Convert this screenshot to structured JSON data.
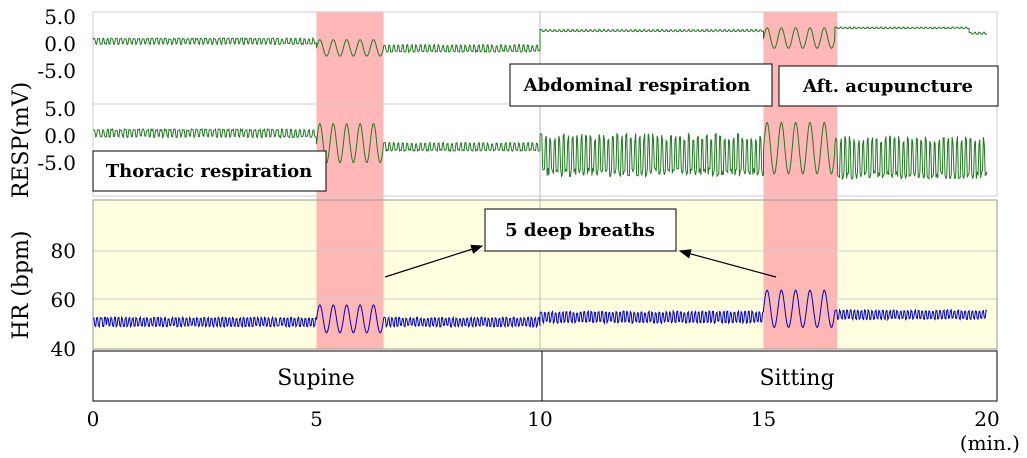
{
  "chart_data": [
    {
      "type": "line",
      "panel": "abdominal",
      "ylabel": "RESP(mV)",
      "yticks": [
        "5.0",
        "0.0",
        "-5.0"
      ],
      "ytick_values": [
        5,
        0,
        -5
      ],
      "ylim": [
        -7,
        5
      ],
      "xlim": [
        0,
        20
      ],
      "series": [
        {
          "name": "Abdominal respiration",
          "color": "#1f7a1f",
          "segments": [
            {
              "start": 0,
              "end": 5.0,
              "base": 0.5,
              "amp": 0.6,
              "period": 0.1
            },
            {
              "start": 5.0,
              "end": 6.5,
              "base": -0.8,
              "amp": 1.6,
              "period": 0.3,
              "deep": true
            },
            {
              "start": 6.5,
              "end": 10.0,
              "base": -0.8,
              "amp": 0.7,
              "period": 0.1
            },
            {
              "start": 10.0,
              "end": 15.0,
              "base": 2.5,
              "amp": 0.2,
              "period": 0.1
            },
            {
              "start": 15.0,
              "end": 16.6,
              "base": 1.0,
              "amp": 2.0,
              "period": 0.32,
              "deep": true
            },
            {
              "start": 16.6,
              "end": 19.6,
              "base": 3.0,
              "amp": 0.15,
              "period": 0.1
            },
            {
              "start": 19.6,
              "end": 20.0,
              "base": 2.0,
              "amp": 0.2,
              "period": 0.1
            }
          ]
        }
      ]
    },
    {
      "type": "line",
      "panel": "thoracic",
      "ylabel": "RESP(mV)",
      "yticks": [
        "5.0",
        "0.0",
        "-5.0"
      ],
      "ytick_values": [
        5,
        0,
        -5
      ],
      "ylim": [
        -9,
        5
      ],
      "xlim": [
        0,
        20
      ],
      "series": [
        {
          "name": "Thoracic respiration",
          "color": "#1f7a1f",
          "segments": [
            {
              "start": 0,
              "end": 5.0,
              "base": 0.5,
              "amp": 0.8,
              "period": 0.1
            },
            {
              "start": 5.0,
              "end": 6.5,
              "base": -1.5,
              "amp": 3.8,
              "period": 0.3,
              "deep": true
            },
            {
              "start": 6.5,
              "end": 10.0,
              "base": -2.0,
              "amp": 0.8,
              "period": 0.1
            },
            {
              "start": 10.0,
              "end": 15.0,
              "base": -3.5,
              "amp": 4.0,
              "period": 0.1
            },
            {
              "start": 15.0,
              "end": 16.6,
              "base": -2.5,
              "amp": 5.0,
              "period": 0.32,
              "deep": true
            },
            {
              "start": 16.6,
              "end": 20.0,
              "base": -4.0,
              "amp": 4.0,
              "period": 0.1
            }
          ]
        }
      ]
    },
    {
      "type": "line",
      "panel": "heart-rate",
      "ylabel": "HR (bpm)",
      "yticks": [
        "80",
        "60",
        "40"
      ],
      "ytick_values": [
        80,
        60,
        40
      ],
      "ylim": [
        40,
        100
      ],
      "xlim": [
        0,
        20
      ],
      "xticks": [
        "0",
        "5",
        "10",
        "15",
        "20"
      ],
      "xtick_values": [
        0,
        5,
        10,
        15,
        20
      ],
      "xlabel": "(min.)",
      "series": [
        {
          "name": "HR",
          "color": "#0000cc",
          "segments": [
            {
              "start": 0,
              "end": 5.0,
              "base": 51,
              "amp": 2,
              "period": 0.08
            },
            {
              "start": 5.0,
              "end": 6.5,
              "base": 52,
              "amp": 6,
              "period": 0.3,
              "deep": true
            },
            {
              "start": 6.5,
              "end": 10.0,
              "base": 51,
              "amp": 2,
              "period": 0.08
            },
            {
              "start": 10.0,
              "end": 15.0,
              "base": 53,
              "amp": 2.5,
              "period": 0.08
            },
            {
              "start": 15.0,
              "end": 16.6,
              "base": 56,
              "amp": 8,
              "period": 0.32,
              "deep": true
            },
            {
              "start": 16.6,
              "end": 20.0,
              "base": 54,
              "amp": 2,
              "period": 0.08
            }
          ]
        }
      ]
    }
  ],
  "highlights": [
    {
      "start": 5.0,
      "end": 6.5,
      "color": "#ffaaaa"
    },
    {
      "start": 15.0,
      "end": 16.65,
      "color": "#ffaaaa"
    }
  ],
  "phases": [
    {
      "label": "Supine",
      "start": 0,
      "end": 10
    },
    {
      "label": "Sitting",
      "start": 10,
      "end": 20
    }
  ],
  "annotations": {
    "abdominal": "Abdominal respiration",
    "acupuncture": "Aft. acupuncture",
    "thoracic": "Thoracic respiration",
    "deep_breaths": "5 deep breaths"
  },
  "colors": {
    "hr_background": "#ffffe0",
    "grid": "#cccccc",
    "highlight": "#ffaaaa"
  }
}
